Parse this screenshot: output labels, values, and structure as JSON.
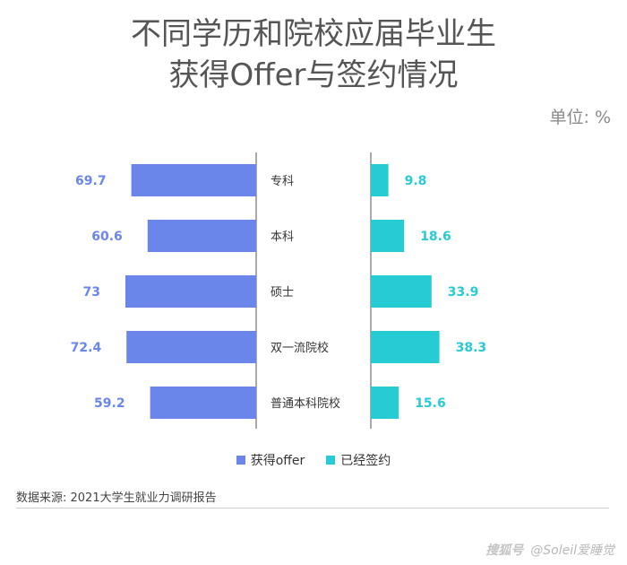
{
  "title": {
    "line1": "不同学历和院校应届毕业生",
    "line2": "获得Offer与签约情况"
  },
  "unit": "单位: %",
  "source": "数据来源: 2021大学生就业力调研报告",
  "watermark": {
    "logo": "搜狐号",
    "text": "@Soleil爱睡觉"
  },
  "colors": {
    "offer": "#6a86ea",
    "signed": "#27cbd3",
    "axis": "#555555"
  },
  "chart_data": {
    "type": "bar",
    "orientation": "horizontal-butterfly",
    "categories": [
      "专科",
      "本科",
      "硕士",
      "双一流院校",
      "普通本科院校"
    ],
    "series": [
      {
        "name": "获得offer",
        "values": [
          69.7,
          60.6,
          73,
          72.4,
          59.2
        ],
        "side": "left"
      },
      {
        "name": "已经签约",
        "values": [
          9.8,
          18.6,
          33.9,
          38.3,
          15.6
        ],
        "side": "right"
      }
    ],
    "data_labels": {
      "offer": [
        "69.7",
        "60.6",
        "73",
        "72.4",
        "59.2"
      ],
      "signed": [
        "9.8",
        "18.6",
        "33.9",
        "38.3",
        "15.6"
      ]
    },
    "legend_position": "bottom-center",
    "grid": false
  }
}
